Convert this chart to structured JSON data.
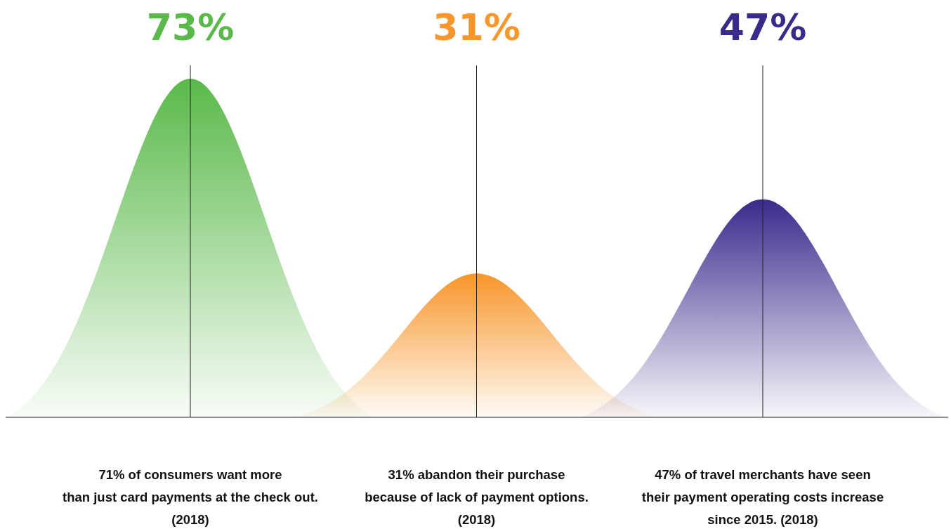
{
  "chart_data": {
    "type": "other",
    "categories": [
      "71% of consumers want more\nthan just card payments at the check out.\n(2018)",
      "31% abandon their purchase\nbecause of lack of payment options.\n(2018)",
      "47% of travel merchants have seen\ntheir payment operating costs increase\nsince 2015. (2018)"
    ],
    "values": [
      73,
      31,
      47
    ],
    "value_labels": [
      "73%",
      "31%",
      "47%"
    ],
    "colors": [
      "#5ab94a",
      "#f7962a",
      "#3a2a8c"
    ]
  }
}
